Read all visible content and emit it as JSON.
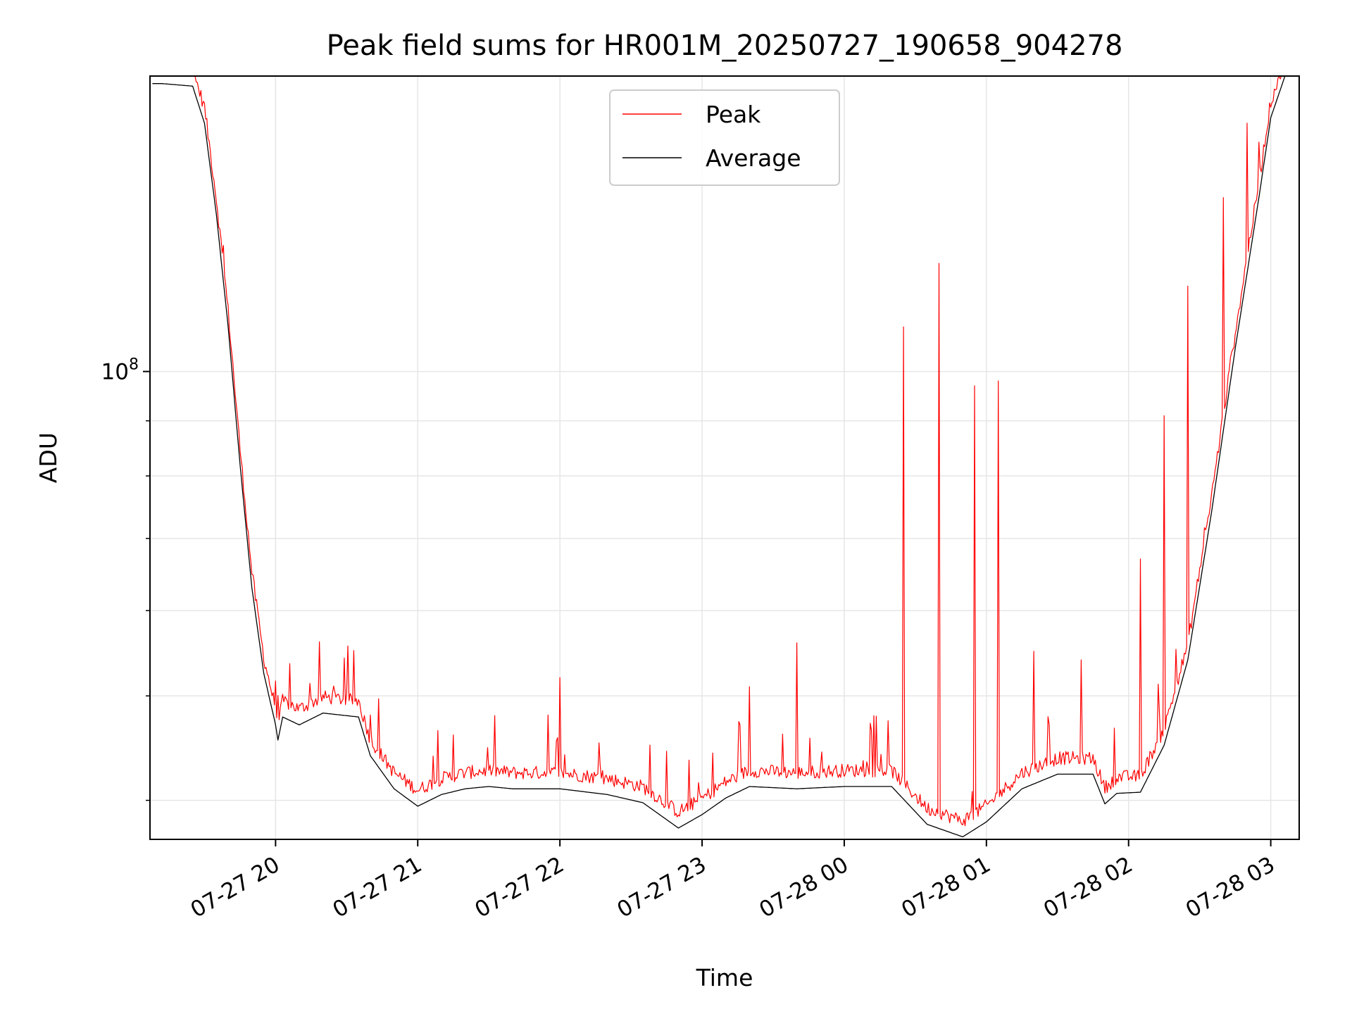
{
  "chart_data": {
    "type": "line",
    "title": "Peak field sums for HR001M_20250727_190658_904278",
    "xlabel": "Time",
    "ylabel": "ADU",
    "yscale": "log",
    "xlim": [
      "2025-07-27 19:07",
      "2025-07-28 03:12"
    ],
    "ylim": [
      36800000,
      188000000
    ],
    "grid": true,
    "legend_position": "upper center",
    "x_tick_labels": [
      "07-27 20",
      "07-27 21",
      "07-27 22",
      "07-27 23",
      "07-28 00",
      "07-28 01",
      "07-28 02",
      "07-28 03"
    ],
    "x_ticks": [
      "2025-07-27 20:00",
      "2025-07-27 21:00",
      "2025-07-27 22:00",
      "2025-07-27 23:00",
      "2025-07-28 00:00",
      "2025-07-28 01:00",
      "2025-07-28 02:00",
      "2025-07-28 03:00"
    ],
    "y_major_tick_labels": [
      "10^8"
    ],
    "y_major_ticks": [
      100000000
    ],
    "y_minor_ticks": [
      40000000,
      50000000,
      60000000,
      70000000,
      80000000,
      90000000
    ],
    "series": [
      {
        "name": "Average",
        "color": "#000000",
        "points": [
          [
            "2025-07-27 19:07",
            185000000
          ],
          [
            "2025-07-27 19:12",
            185000000
          ],
          [
            "2025-07-27 19:25",
            184000000
          ],
          [
            "2025-07-27 19:30",
            170000000
          ],
          [
            "2025-07-27 19:35",
            140000000
          ],
          [
            "2025-07-27 19:40",
            110000000
          ],
          [
            "2025-07-27 19:45",
            82000000
          ],
          [
            "2025-07-27 19:50",
            63000000
          ],
          [
            "2025-07-27 19:55",
            52500000
          ],
          [
            "2025-07-27 20:00",
            47000000
          ],
          [
            "2025-07-27 20:01",
            45500000
          ],
          [
            "2025-07-27 20:03",
            47800000
          ],
          [
            "2025-07-27 20:10",
            47000000
          ],
          [
            "2025-07-27 20:20",
            48200000
          ],
          [
            "2025-07-27 20:35",
            47800000
          ],
          [
            "2025-07-27 20:40",
            44000000
          ],
          [
            "2025-07-27 20:50",
            41000000
          ],
          [
            "2025-07-27 21:00",
            39500000
          ],
          [
            "2025-07-27 21:10",
            40500000
          ],
          [
            "2025-07-27 21:20",
            41000000
          ],
          [
            "2025-07-27 21:30",
            41200000
          ],
          [
            "2025-07-27 21:40",
            41000000
          ],
          [
            "2025-07-27 22:00",
            41000000
          ],
          [
            "2025-07-27 22:20",
            40500000
          ],
          [
            "2025-07-27 22:35",
            39800000
          ],
          [
            "2025-07-27 22:50",
            37700000
          ],
          [
            "2025-07-27 23:00",
            38800000
          ],
          [
            "2025-07-27 23:10",
            40200000
          ],
          [
            "2025-07-27 23:20",
            41200000
          ],
          [
            "2025-07-27 23:40",
            41000000
          ],
          [
            "2025-07-28 00:00",
            41200000
          ],
          [
            "2025-07-28 00:20",
            41200000
          ],
          [
            "2025-07-28 00:35",
            38000000
          ],
          [
            "2025-07-28 00:50",
            37000000
          ],
          [
            "2025-07-28 01:00",
            38200000
          ],
          [
            "2025-07-28 01:15",
            41000000
          ],
          [
            "2025-07-28 01:30",
            42300000
          ],
          [
            "2025-07-28 01:45",
            42300000
          ],
          [
            "2025-07-28 01:50",
            39700000
          ],
          [
            "2025-07-28 01:55",
            40600000
          ],
          [
            "2025-07-28 02:05",
            40700000
          ],
          [
            "2025-07-28 02:15",
            45000000
          ],
          [
            "2025-07-28 02:25",
            54000000
          ],
          [
            "2025-07-28 02:35",
            74000000
          ],
          [
            "2025-07-28 02:45",
            105000000
          ],
          [
            "2025-07-28 02:55",
            145000000
          ],
          [
            "2025-07-28 03:00",
            172000000
          ],
          [
            "2025-07-28 03:06",
            188000000
          ]
        ]
      },
      {
        "name": "Peak",
        "color": "#ff0000",
        "spikes": [
          [
            "2025-07-27 20:40",
            48000000
          ],
          [
            "2025-07-27 21:15",
            46000000
          ],
          [
            "2025-07-27 21:55",
            48000000
          ],
          [
            "2025-07-27 22:00",
            52000000
          ],
          [
            "2025-07-27 23:20",
            51000000
          ],
          [
            "2025-07-27 23:40",
            56000000
          ],
          [
            "2025-07-28 00:25",
            110000000
          ],
          [
            "2025-07-28 00:40",
            126000000
          ],
          [
            "2025-07-28 00:55",
            97000000
          ],
          [
            "2025-07-28 01:05",
            98000000
          ],
          [
            "2025-07-28 01:20",
            55000000
          ],
          [
            "2025-07-28 01:40",
            54000000
          ],
          [
            "2025-07-28 02:05",
            67000000
          ],
          [
            "2025-07-28 02:15",
            91000000
          ],
          [
            "2025-07-28 02:25",
            120000000
          ],
          [
            "2025-07-28 02:40",
            145000000
          ],
          [
            "2025-07-28 02:50",
            170000000
          ]
        ]
      }
    ]
  }
}
